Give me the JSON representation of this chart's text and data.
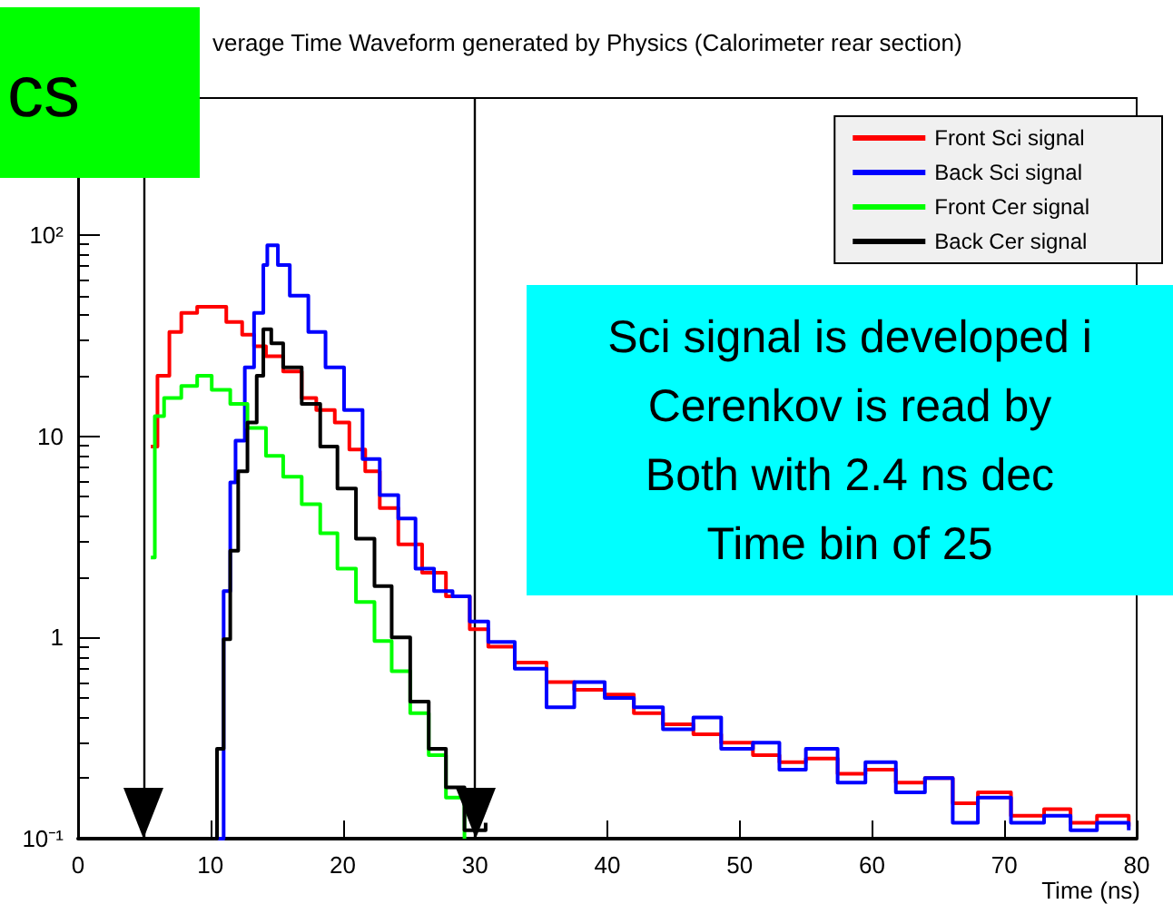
{
  "chart_data": {
    "type": "step",
    "title": "verage Time Waveform generated by Physics (Calorimeter rear section)",
    "xlabel": "Time (ns)",
    "annotations": [
      "cs",
      "Sci signal is developed i",
      "Cerenkov is read by",
      "Both with 2.4 ns dec",
      "Time bin of 25"
    ],
    "series": [
      {
        "name": "Front Sci signal",
        "color": "#ff0000",
        "x": [
          5.5,
          6,
          6.9,
          7.8,
          9,
          10.1,
          11.2,
          12.4,
          13.3,
          14.2,
          15.5,
          16.9,
          18,
          19.4,
          20.5,
          21.7,
          22.8,
          24.2,
          26,
          27.8,
          29.6,
          31,
          33,
          35.4,
          37.5,
          39.8,
          42,
          44.2,
          46.5,
          48.6,
          51,
          53,
          55,
          57.4,
          59.5,
          61.8,
          64,
          66.1,
          68,
          70.5,
          73,
          75,
          77,
          79.4
        ],
        "values": [
          8.9,
          20,
          33,
          41,
          44,
          44,
          37,
          32,
          28,
          25,
          21,
          15.5,
          13.5,
          11.7,
          8.6,
          6.7,
          4.4,
          2.9,
          2.1,
          1.6,
          1.1,
          0.9,
          0.75,
          0.6,
          0.55,
          0.52,
          0.42,
          0.37,
          0.33,
          0.3,
          0.26,
          0.24,
          0.25,
          0.21,
          0.22,
          0.19,
          0.2,
          0.15,
          0.17,
          0.13,
          0.14,
          0.12,
          0.13,
          0.115
        ]
      },
      {
        "name": "Back Sci signal",
        "color": "#0000ff",
        "x": [
          10.3,
          11,
          11.5,
          11.9,
          12.6,
          13.3,
          14,
          14.3,
          15.1,
          16,
          17.4,
          18.7,
          20.1,
          21.5,
          22.8,
          24.2,
          25.5,
          26.9,
          28.3,
          29.6,
          31,
          33,
          35.4,
          37.5,
          39.8,
          42,
          44.2,
          46.5,
          48.6,
          51,
          53,
          55,
          57.4,
          59.5,
          61.8,
          64,
          66.1,
          68,
          70.5,
          73,
          75,
          77,
          79.4
        ],
        "values": [
          0.1,
          1.7,
          5.9,
          9.5,
          22,
          41,
          71,
          89,
          71,
          50,
          33,
          22,
          13.5,
          7.7,
          5.1,
          3.9,
          2.2,
          1.7,
          1.6,
          1.2,
          0.95,
          0.7,
          0.45,
          0.6,
          0.5,
          0.45,
          0.35,
          0.4,
          0.28,
          0.3,
          0.22,
          0.28,
          0.19,
          0.24,
          0.17,
          0.2,
          0.12,
          0.16,
          0.12,
          0.13,
          0.11,
          0.12,
          0.11
        ]
      },
      {
        "name": "Front Cer signal",
        "color": "#00ff00",
        "x": [
          5.5,
          5.8,
          6.5,
          7.8,
          9,
          10.1,
          11.5,
          12.8,
          14.2,
          15.5,
          16.9,
          18.3,
          19.6,
          21,
          22.4,
          23.7,
          25.1,
          26.5,
          27.8,
          29.2
        ],
        "values": [
          2.5,
          12.6,
          15.5,
          17.8,
          20,
          17,
          14.5,
          11,
          8,
          6.3,
          4.6,
          3.3,
          2.2,
          1.5,
          0.96,
          0.68,
          0.42,
          0.26,
          0.16,
          0.1
        ]
      },
      {
        "name": "Back Cer signal",
        "color": "#000000",
        "x": [
          10.3,
          10.5,
          11,
          11.5,
          12.1,
          12.8,
          13.5,
          14,
          14.6,
          15.5,
          16.9,
          18.3,
          19.6,
          21,
          22.4,
          23.7,
          25.1,
          26.5,
          27.8,
          29.2,
          30.8
        ],
        "values": [
          0.1,
          0.28,
          0.98,
          2.7,
          6.7,
          11.7,
          20,
          34,
          29,
          22,
          14.5,
          8.9,
          5.5,
          3.1,
          1.8,
          1,
          0.48,
          0.28,
          0.18,
          0.11,
          0.12
        ]
      }
    ],
    "xlim": [
      0,
      80
    ],
    "xticks": [
      0,
      10,
      20,
      30,
      40,
      50,
      60,
      70,
      80
    ],
    "ylim": [
      0.1,
      480
    ],
    "yticks": [
      {
        "value": 0.1,
        "label": "10⁻¹"
      },
      1,
      10,
      {
        "value": 100,
        "label": "10²"
      }
    ],
    "log": "y",
    "grid": false,
    "legend": "top right",
    "line_style": "solid",
    "marker": "none",
    "ref_lines": [
      {
        "axis": "x",
        "value": 5,
        "color": "#000000"
      },
      {
        "axis": "x",
        "value": 30,
        "color": "#000000"
      }
    ]
  }
}
